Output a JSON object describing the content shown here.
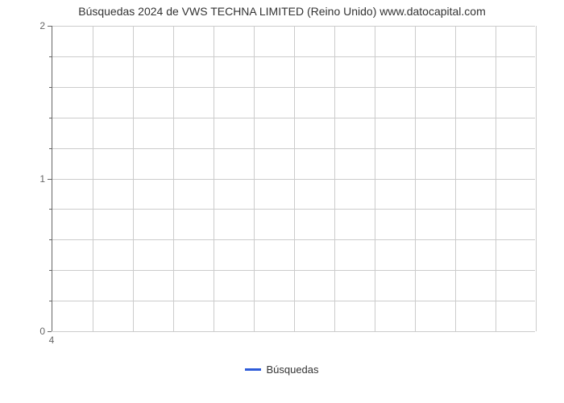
{
  "chart": {
    "type": "line",
    "title": "Búsquedas 2024 de VWS TECHNA LIMITED (Reino Unido) www.datocapital.com",
    "title_fontsize": 14,
    "title_color": "#333333",
    "background_color": "#ffffff",
    "grid_color": "#cccccc",
    "axis_line_color": "#666666",
    "y": {
      "lim": [
        0,
        2
      ],
      "major_ticks": [
        0,
        1,
        2
      ],
      "minor_ticks": [
        0.2,
        0.4,
        0.6,
        0.8,
        1.2,
        1.4,
        1.6,
        1.8
      ],
      "label_fontsize": 12,
      "label_color": "#666666"
    },
    "x": {
      "lim": [
        0,
        12
      ],
      "grid_lines": [
        1,
        2,
        3,
        4,
        5,
        6,
        7,
        8,
        9,
        10,
        11,
        12
      ],
      "tick_labels": [
        {
          "pos": 0,
          "text": "4"
        }
      ],
      "label_fontsize": 12,
      "label_color": "#666666"
    },
    "series": [
      {
        "name": "Búsquedas",
        "color": "#2e5cd9",
        "values": []
      }
    ],
    "legend": {
      "position": "bottom-center",
      "items": [
        {
          "label": "Búsquedas",
          "color": "#2e5cd9"
        }
      ],
      "fontsize": 13
    }
  }
}
